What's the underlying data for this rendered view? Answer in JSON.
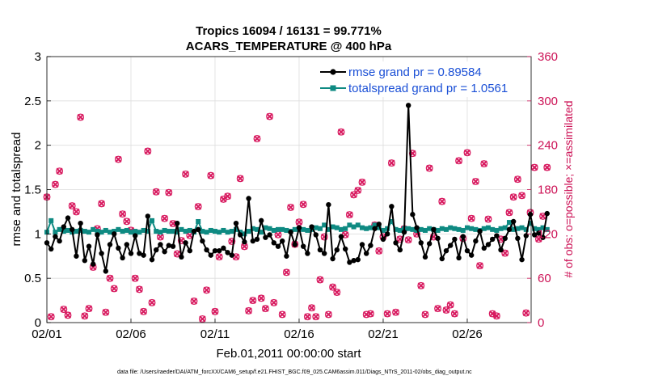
{
  "chart_data": {
    "type": "line",
    "title": "Tropics 16094 / 16131 = 99.771%",
    "subtitle": "ACARS_TEMPERATURE @ 400 hPa",
    "xlabel": "Feb.01,2011 00:00:00 start",
    "ylabel": "rmse and totalspread",
    "y2label": "# of obs: o=possible; ×=assimilated",
    "footer": "data file: /Users/raeder/DAI/ATM_forcXX/CAM6_setup/f.e21.FHIST_BGC.f09_025.CAM6assim.011/Diags_NTrS_2011-02/obs_diag_output.nc",
    "xlim": [
      1,
      29.8
    ],
    "x_ticks": [
      1,
      6,
      11,
      16,
      21,
      26
    ],
    "x_tick_labels": [
      "02/01",
      "02/06",
      "02/11",
      "02/16",
      "02/21",
      "02/26"
    ],
    "ylim": [
      0,
      3
    ],
    "y_ticks": [
      0,
      0.5,
      1,
      1.5,
      2,
      2.5,
      3
    ],
    "y_tick_labels": [
      "0",
      "0.5",
      "1",
      "1.5",
      "2",
      "2.5",
      "3"
    ],
    "y2lim": [
      0,
      360
    ],
    "y2_ticks": [
      0,
      60,
      120,
      180,
      240,
      300,
      360
    ],
    "y2_tick_labels": [
      "0",
      "60",
      "120",
      "180",
      "240",
      "300",
      "360"
    ],
    "grid": true,
    "legend_position": "top-right",
    "colors": {
      "rmse": "#000000",
      "spread": "#0e8a82",
      "obs": "#d81b60",
      "legend_text": "#1a4fd6",
      "right_axis": "#cc1155",
      "grid": "#dddddd"
    },
    "series": [
      {
        "name": "rmse grand pr = 0.89584",
        "axis": "left",
        "x_start": 1,
        "x_step": 0.25,
        "values": [
          0.9,
          0.83,
          0.97,
          0.92,
          1.08,
          1.18,
          1.05,
          0.75,
          1.12,
          0.7,
          0.86,
          0.66,
          0.99,
          0.78,
          0.58,
          0.88,
          1.0,
          0.84,
          0.73,
          0.88,
          0.78,
          0.98,
          0.78,
          0.76,
          1.2,
          0.71,
          0.82,
          0.88,
          0.8,
          0.87,
          0.86,
          1.12,
          0.74,
          0.9,
          0.81,
          1.03,
          1.05,
          0.92,
          0.82,
          0.76,
          0.81,
          0.81,
          0.84,
          0.79,
          0.76,
          1.12,
          0.99,
          0.91,
          1.4,
          0.92,
          0.94,
          1.15,
          0.96,
          0.99,
          0.9,
          0.86,
          0.92,
          0.75,
          1.02,
          0.88,
          1.07,
          0.86,
          0.78,
          1.08,
          0.99,
          0.82,
          0.78,
          1.33,
          0.72,
          0.82,
          0.97,
          0.83,
          0.68,
          0.7,
          0.71,
          0.88,
          0.78,
          0.87,
          1.06,
          1.11,
          0.94,
          1.0,
          1.31,
          0.9,
          0.82,
          1.02,
          2.45,
          1.22,
          1.07,
          0.9,
          0.74,
          0.89,
          1.05,
          0.95,
          0.72,
          0.81,
          0.87,
          0.94,
          0.73,
          0.97,
          0.81,
          0.76,
          0.92,
          1.03,
          0.84,
          0.88,
          0.94,
          0.98,
          0.82,
          0.95,
          1.05,
          1.14,
          0.95,
          0.71,
          0.98,
          1.22,
          0.99,
          1.01,
          0.96,
          1.23
        ]
      },
      {
        "name": "totalspread grand pr = 1.0561",
        "axis": "left",
        "x_start": 1,
        "x_step": 0.25,
        "values": [
          1.02,
          1.15,
          1.02,
          1.05,
          1.03,
          1.04,
          1.02,
          1.03,
          1.04,
          1.03,
          1.02,
          1.05,
          1.03,
          1.02,
          1.04,
          1.02,
          1.03,
          1.05,
          1.03,
          1.04,
          1.02,
          1.03,
          1.02,
          1.04,
          1.03,
          1.15,
          1.03,
          1.02,
          1.04,
          1.03,
          1.03,
          1.02,
          1.05,
          1.03,
          1.04,
          1.02,
          1.14,
          1.03,
          1.02,
          1.04,
          1.03,
          1.02,
          1.04,
          1.02,
          1.03,
          1.05,
          1.02,
          1.0,
          1.03,
          1.06,
          1.05,
          1.02,
          1.07,
          1.06,
          1.04,
          1.05,
          1.05,
          1.04,
          1.03,
          1.05,
          1.06,
          1.05,
          1.04,
          1.05,
          1.07,
          1.06,
          1.1,
          1.05,
          1.08,
          1.07,
          1.05,
          1.06,
          1.1,
          1.08,
          1.1,
          1.07,
          1.06,
          1.07,
          1.1,
          1.07,
          1.04,
          1.06,
          1.14,
          1.05,
          1.04,
          1.06,
          1.06,
          1.05,
          1.04,
          1.05,
          1.04,
          1.06,
          1.05,
          1.04,
          1.06,
          1.05,
          1.07,
          1.06,
          1.05,
          1.04,
          1.07,
          1.06,
          1.05,
          1.04,
          1.06,
          1.07,
          1.05,
          1.04,
          1.06,
          1.07,
          1.13,
          1.05,
          1.06,
          1.07,
          1.05,
          1.12,
          1.06,
          1.05,
          1.07,
          1.05
        ]
      },
      {
        "name": "# of obs possible / assimilated",
        "axis": "right",
        "x_start": 1,
        "x_step": 0.25,
        "values": [
          170,
          8,
          187,
          205,
          18,
          10,
          158,
          150,
          278,
          9,
          19,
          75,
          127,
          161,
          14,
          60,
          46,
          221,
          147,
          137,
          125,
          60,
          45,
          15,
          232,
          27,
          177,
          116,
          141,
          176,
          134,
          93,
          111,
          201,
          118,
          29,
          157,
          5,
          44,
          199,
          15,
          89,
          167,
          171,
          110,
          89,
          195,
          103,
          16,
          30,
          249,
          33,
          19,
          279,
          27,
          119,
          11,
          68,
          156,
          106,
          136,
          160,
          8,
          20,
          8,
          58,
          116,
          11,
          48,
          41,
          258,
          119,
          146,
          173,
          179,
          190,
          11,
          12,
          132,
          97,
          116,
          12,
          216,
          14,
          113,
          127,
          112,
          229,
          120,
          50,
          11,
          209,
          116,
          19,
          164,
          17,
          24,
          12,
          219,
          114,
          230,
          141,
          191,
          77,
          215,
          140,
          12,
          9,
          113,
          94,
          149,
          170,
          194,
          172,
          13,
          149,
          210,
          113,
          144,
          210
        ]
      }
    ]
  }
}
